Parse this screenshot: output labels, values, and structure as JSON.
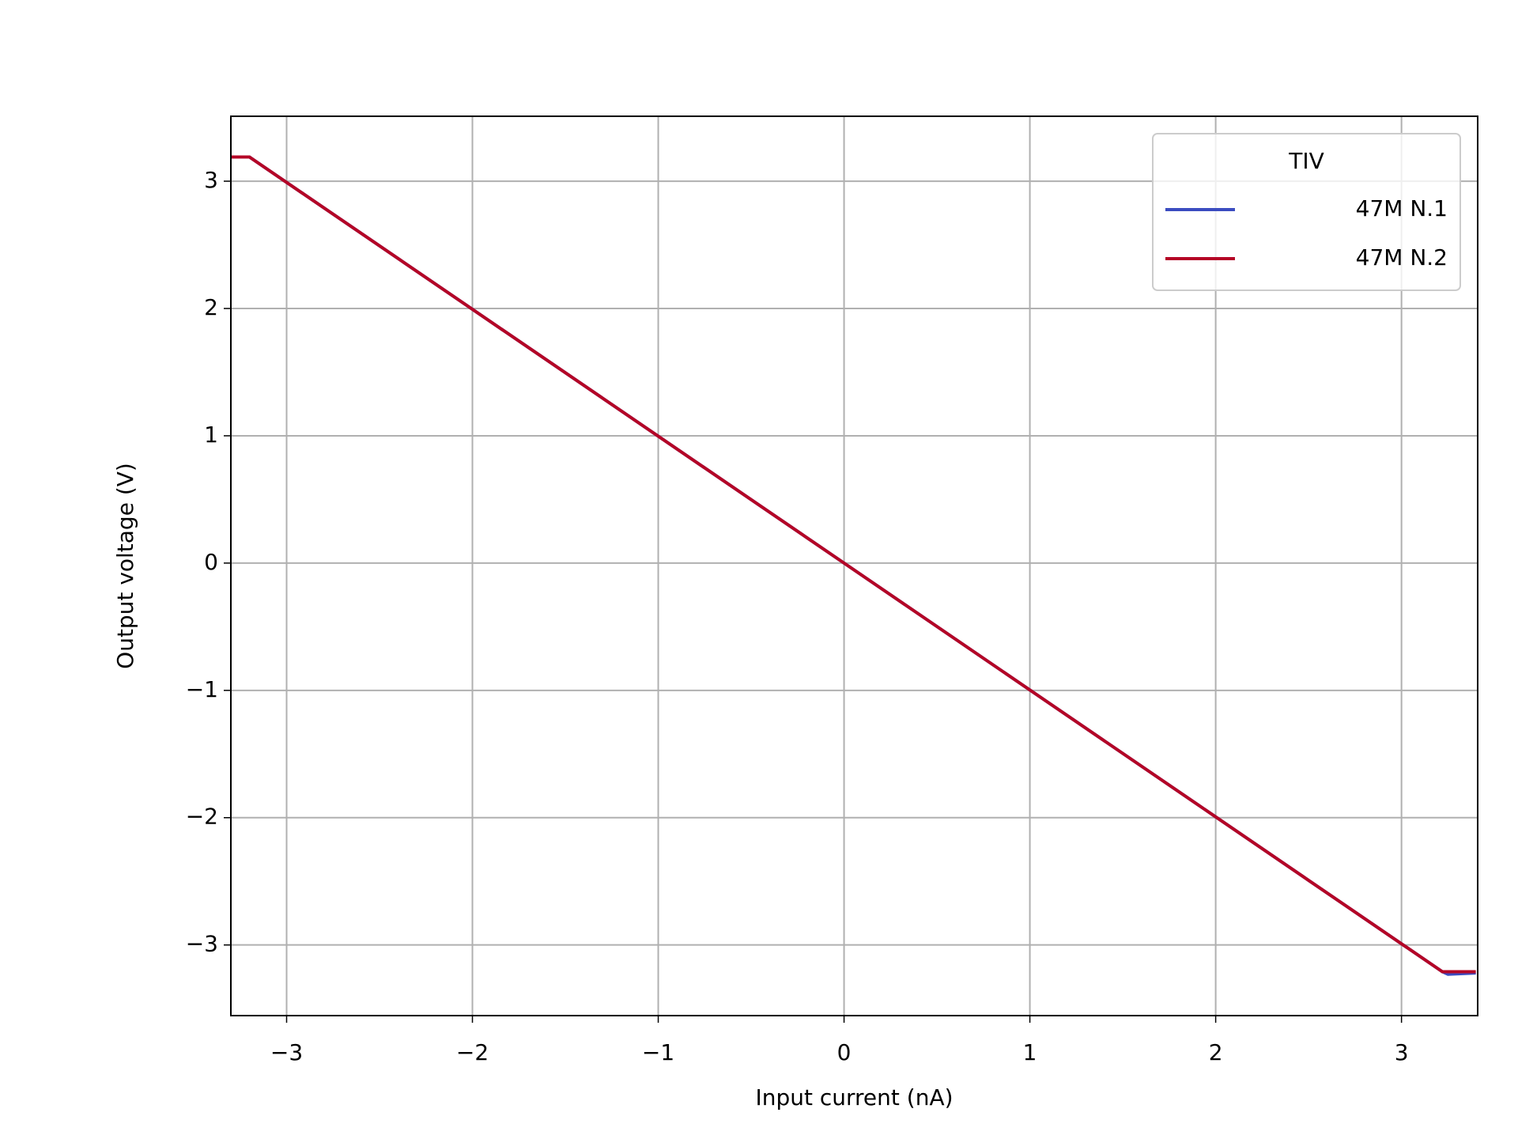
{
  "chart_data": {
    "type": "line",
    "x_label": "Input current (nA)",
    "y_label": "Output voltage (V)",
    "legend_title": "TIV",
    "legend": "upper right",
    "grid": true,
    "x": [
      -3.3,
      -3.2,
      0,
      3.22,
      3.25,
      3.4
    ],
    "series": [
      {
        "name": "47M N.1",
        "color": "#3b4cc0",
        "values": [
          3.19,
          3.19,
          0,
          -3.21,
          -3.23,
          -3.22
        ]
      },
      {
        "name": "47M N.2",
        "color": "#b40426",
        "values": [
          3.19,
          3.19,
          0,
          -3.21,
          -3.21,
          -3.21
        ]
      }
    ],
    "xlim": [
      -3.3,
      3.41
    ],
    "ylim": [
      -3.555,
      3.51
    ],
    "xticks": [
      {
        "value": -3,
        "label": "−3"
      },
      {
        "value": -2,
        "label": "−2"
      },
      {
        "value": -1,
        "label": "−1"
      },
      0,
      1,
      2,
      3
    ],
    "yticks": [
      {
        "value": -3,
        "label": "−3"
      },
      {
        "value": -2,
        "label": "−2"
      },
      {
        "value": -1,
        "label": "−1"
      },
      0,
      1,
      2,
      3
    ]
  }
}
